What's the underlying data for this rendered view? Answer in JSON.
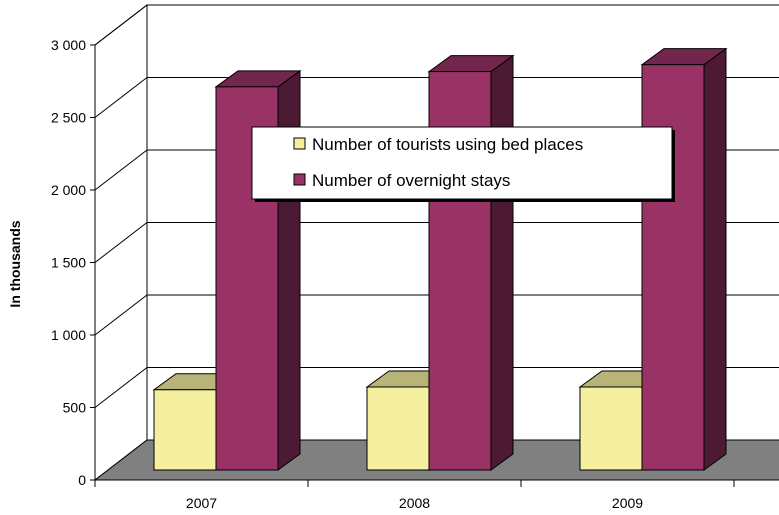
{
  "chart_data": {
    "type": "bar",
    "categories": [
      "2007",
      "2008",
      "2009"
    ],
    "series": [
      {
        "name": "Number of tourists using bed places",
        "values": [
          580,
          600,
          600
        ],
        "color": "#f5f0a0"
      },
      {
        "name": "Number of overnight stays",
        "values": [
          2770,
          2880,
          2930
        ],
        "color": "#993366"
      }
    ],
    "ylabel": "In thousands",
    "ylim": [
      0,
      3000
    ],
    "yticks": [
      "0",
      "500",
      "1 000",
      "1 500",
      "2 000",
      "2 500",
      "3 000"
    ],
    "grid": true,
    "legend_position": "top-center",
    "style": "3d-clustered-column",
    "floor_color": "#808080"
  }
}
